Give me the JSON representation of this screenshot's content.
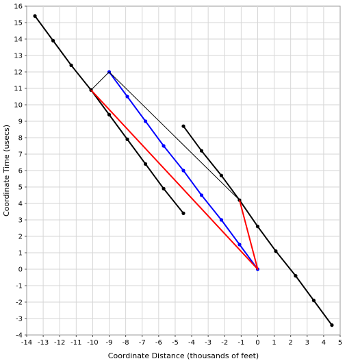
{
  "chart_data": {
    "type": "line",
    "title": "",
    "xlabel": "Coordinate Distance (thousands of feet)",
    "ylabel": "Coordinate Time (usecs)",
    "xlim": [
      -14,
      5
    ],
    "ylim": [
      -4,
      16
    ],
    "grid": true,
    "xticks": [
      -14,
      -13,
      -12,
      -11,
      -10,
      -9,
      -8,
      -7,
      -6,
      -5,
      -4,
      -3,
      -2,
      -1,
      0,
      1,
      2,
      3,
      4,
      5
    ],
    "yticks": [
      -4,
      -3,
      -2,
      -1,
      0,
      1,
      2,
      3,
      4,
      5,
      6,
      7,
      8,
      9,
      10,
      11,
      12,
      13,
      14,
      15,
      16
    ],
    "series": [
      {
        "color": "#000000",
        "line_width": 2,
        "markers": true,
        "points": [
          [
            -13.5,
            15.4
          ],
          [
            -12.4,
            13.9
          ],
          [
            -11.3,
            12.4
          ],
          [
            -10.1,
            10.9
          ],
          [
            -9.0,
            9.4
          ],
          [
            -7.9,
            7.9
          ],
          [
            -6.8,
            6.4
          ],
          [
            -5.7,
            4.9
          ],
          [
            -4.5,
            3.4
          ]
        ]
      },
      {
        "color": "#000000",
        "line_width": 2,
        "markers": true,
        "points": [
          [
            -4.5,
            8.7
          ],
          [
            -3.4,
            7.2
          ],
          [
            -2.2,
            5.7
          ],
          [
            -1.1,
            4.2
          ],
          [
            0.0,
            2.6
          ],
          [
            1.1,
            1.1
          ],
          [
            2.3,
            -0.4
          ],
          [
            3.4,
            -1.9
          ],
          [
            4.5,
            -3.4
          ]
        ]
      },
      {
        "color": "#0000ff",
        "line_width": 2,
        "markers": true,
        "points": [
          [
            -9.0,
            12.0
          ],
          [
            -7.9,
            10.5
          ],
          [
            -6.8,
            9.0
          ],
          [
            -5.7,
            7.5
          ],
          [
            -4.5,
            6.0
          ],
          [
            -3.4,
            4.5
          ],
          [
            -2.2,
            3.0
          ],
          [
            -1.1,
            1.5
          ],
          [
            0.0,
            0.0
          ]
        ]
      },
      {
        "color": "#ff0000",
        "line_width": 2,
        "markers": false,
        "points": [
          [
            -10.1,
            10.9
          ],
          [
            0.0,
            0.0
          ],
          [
            -1.1,
            4.2
          ],
          [
            0.0,
            0.0
          ]
        ]
      },
      {
        "color": "#000000",
        "line_width": 1,
        "markers": false,
        "points": [
          [
            -10.1,
            10.9
          ],
          [
            -9.0,
            12.0
          ],
          [
            -1.1,
            4.2
          ]
        ]
      }
    ]
  }
}
